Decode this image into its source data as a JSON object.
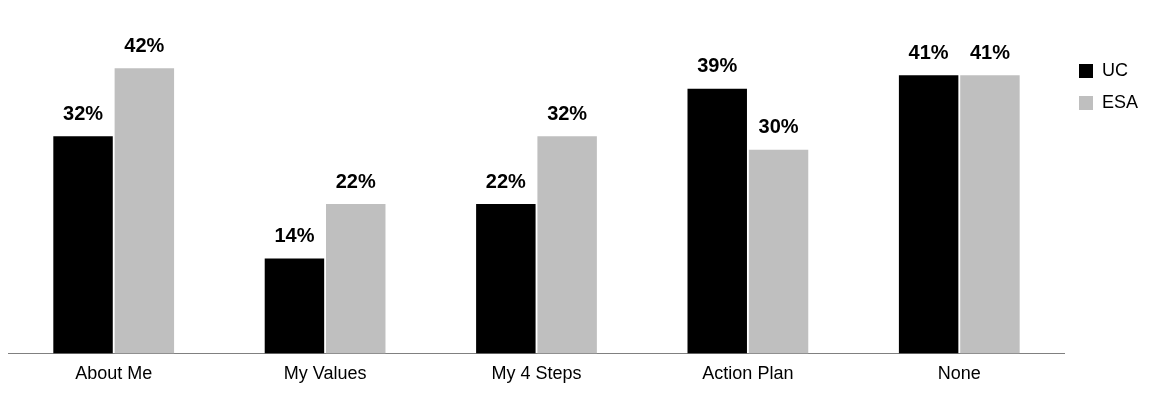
{
  "chart_data": {
    "type": "bar",
    "categories": [
      "About Me",
      "My Values",
      "My 4 Steps",
      "Action Plan",
      "None"
    ],
    "series": [
      {
        "name": "UC",
        "color": "#000000",
        "values": [
          32,
          14,
          22,
          39,
          41
        ],
        "value_labels": [
          "32%",
          "14%",
          "22%",
          "39%",
          "41%"
        ]
      },
      {
        "name": "ESA",
        "color": "#bfbfbf",
        "values": [
          42,
          22,
          32,
          30,
          41
        ],
        "value_labels": [
          "42%",
          "22%",
          "32%",
          "30%",
          "41%"
        ]
      }
    ],
    "grid": false,
    "legend": "top right",
    "tick_labels": "x"
  }
}
